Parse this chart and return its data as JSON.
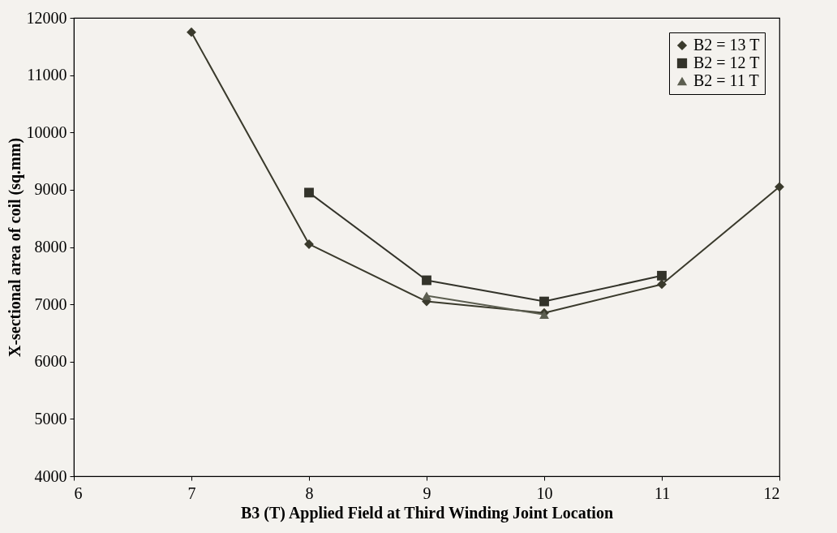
{
  "chart_data": {
    "type": "line",
    "xlabel": "B3 (T) Applied Field at Third Winding Joint Location",
    "ylabel": "X-sectional area of coil (sq.mm)",
    "xlim": [
      6,
      12
    ],
    "xticks": [
      6,
      7,
      8,
      9,
      10,
      11,
      12
    ],
    "ylim": [
      4000,
      12000
    ],
    "yticks": [
      4000,
      5000,
      6000,
      7000,
      8000,
      9000,
      10000,
      11000,
      12000
    ],
    "grid": false,
    "legend": "top right",
    "series": [
      {
        "name": "B2 = 13 T",
        "color": "#3a3a2c",
        "marker": "diamond",
        "x": [
          7,
          8,
          9,
          10,
          11,
          12
        ],
        "values": [
          11750,
          8050,
          7050,
          6850,
          7350,
          9050
        ]
      },
      {
        "name": "B2 = 12 T",
        "color": "#33332a",
        "marker": "square",
        "x": [
          8,
          9,
          10,
          11
        ],
        "values": [
          8950,
          7420,
          7050,
          7500
        ]
      },
      {
        "name": "B2 = 11 T",
        "color": "#5c5e50",
        "marker": "triangle",
        "x": [
          9,
          10
        ],
        "values": [
          7150,
          6820
        ]
      }
    ]
  }
}
